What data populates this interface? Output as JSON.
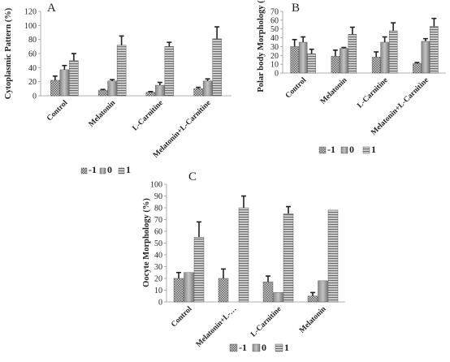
{
  "chart_data": [
    {
      "type": "bar",
      "panel_label": "A",
      "ylabel": "Cytoplasmic Pattern (%)",
      "ylim": [
        0,
        120
      ],
      "yticks": [
        "0",
        "20",
        "40",
        "60",
        "80",
        "100",
        "120"
      ],
      "categories": [
        "Control",
        "Melatonin",
        "L-Carnitine",
        "Melatonin+L-Carnitine"
      ],
      "series": [
        {
          "name": "-1",
          "values": [
            22,
            8,
            5,
            10
          ],
          "errors": [
            6,
            1,
            1,
            2
          ]
        },
        {
          "name": "0",
          "values": [
            37,
            21,
            15,
            21
          ],
          "errors": [
            6,
            2,
            4,
            3
          ]
        },
        {
          "name": "1",
          "values": [
            50,
            72,
            70,
            81
          ],
          "errors": [
            10,
            13,
            6,
            17
          ]
        }
      ],
      "legend": "bottom"
    },
    {
      "type": "bar",
      "panel_label": "B",
      "ylabel": "Polar body Morphology (%)",
      "ylim": [
        0,
        70
      ],
      "yticks": [
        "0",
        "10",
        "20",
        "30",
        "40",
        "50",
        "60",
        "70"
      ],
      "categories": [
        "Control",
        "Melatonin",
        "L-Carnitine",
        "Melatonin+L-Carnitine"
      ],
      "series": [
        {
          "name": "-1",
          "values": [
            30,
            19,
            18,
            11
          ],
          "errors": [
            8,
            7,
            6,
            1
          ]
        },
        {
          "name": "0",
          "values": [
            35,
            28,
            35,
            36
          ],
          "errors": [
            6,
            1,
            6,
            3
          ]
        },
        {
          "name": "1",
          "values": [
            22,
            44,
            48,
            53
          ],
          "errors": [
            5,
            8,
            9,
            9
          ]
        }
      ],
      "legend": "bottom"
    },
    {
      "type": "bar",
      "panel_label": "C",
      "ylabel": "Oocyte Morphology (%)",
      "ylim": [
        0,
        100
      ],
      "yticks": [
        "0",
        "10",
        "20",
        "30",
        "40",
        "50",
        "60",
        "70",
        "80",
        "90",
        "100"
      ],
      "categories": [
        "Control",
        "Melatonin+L-…",
        "L-Carnitine",
        "Melatonin"
      ],
      "series": [
        {
          "name": "-1",
          "values": [
            20,
            20,
            17,
            5
          ],
          "errors": [
            5,
            8,
            5,
            3
          ]
        },
        {
          "name": "0",
          "values": [
            25,
            0,
            8,
            18
          ],
          "errors": [
            0,
            0,
            0,
            0
          ]
        },
        {
          "name": "1",
          "values": [
            55,
            80,
            75,
            78
          ],
          "errors": [
            13,
            10,
            6,
            0
          ]
        }
      ],
      "legend": "bottom"
    }
  ]
}
